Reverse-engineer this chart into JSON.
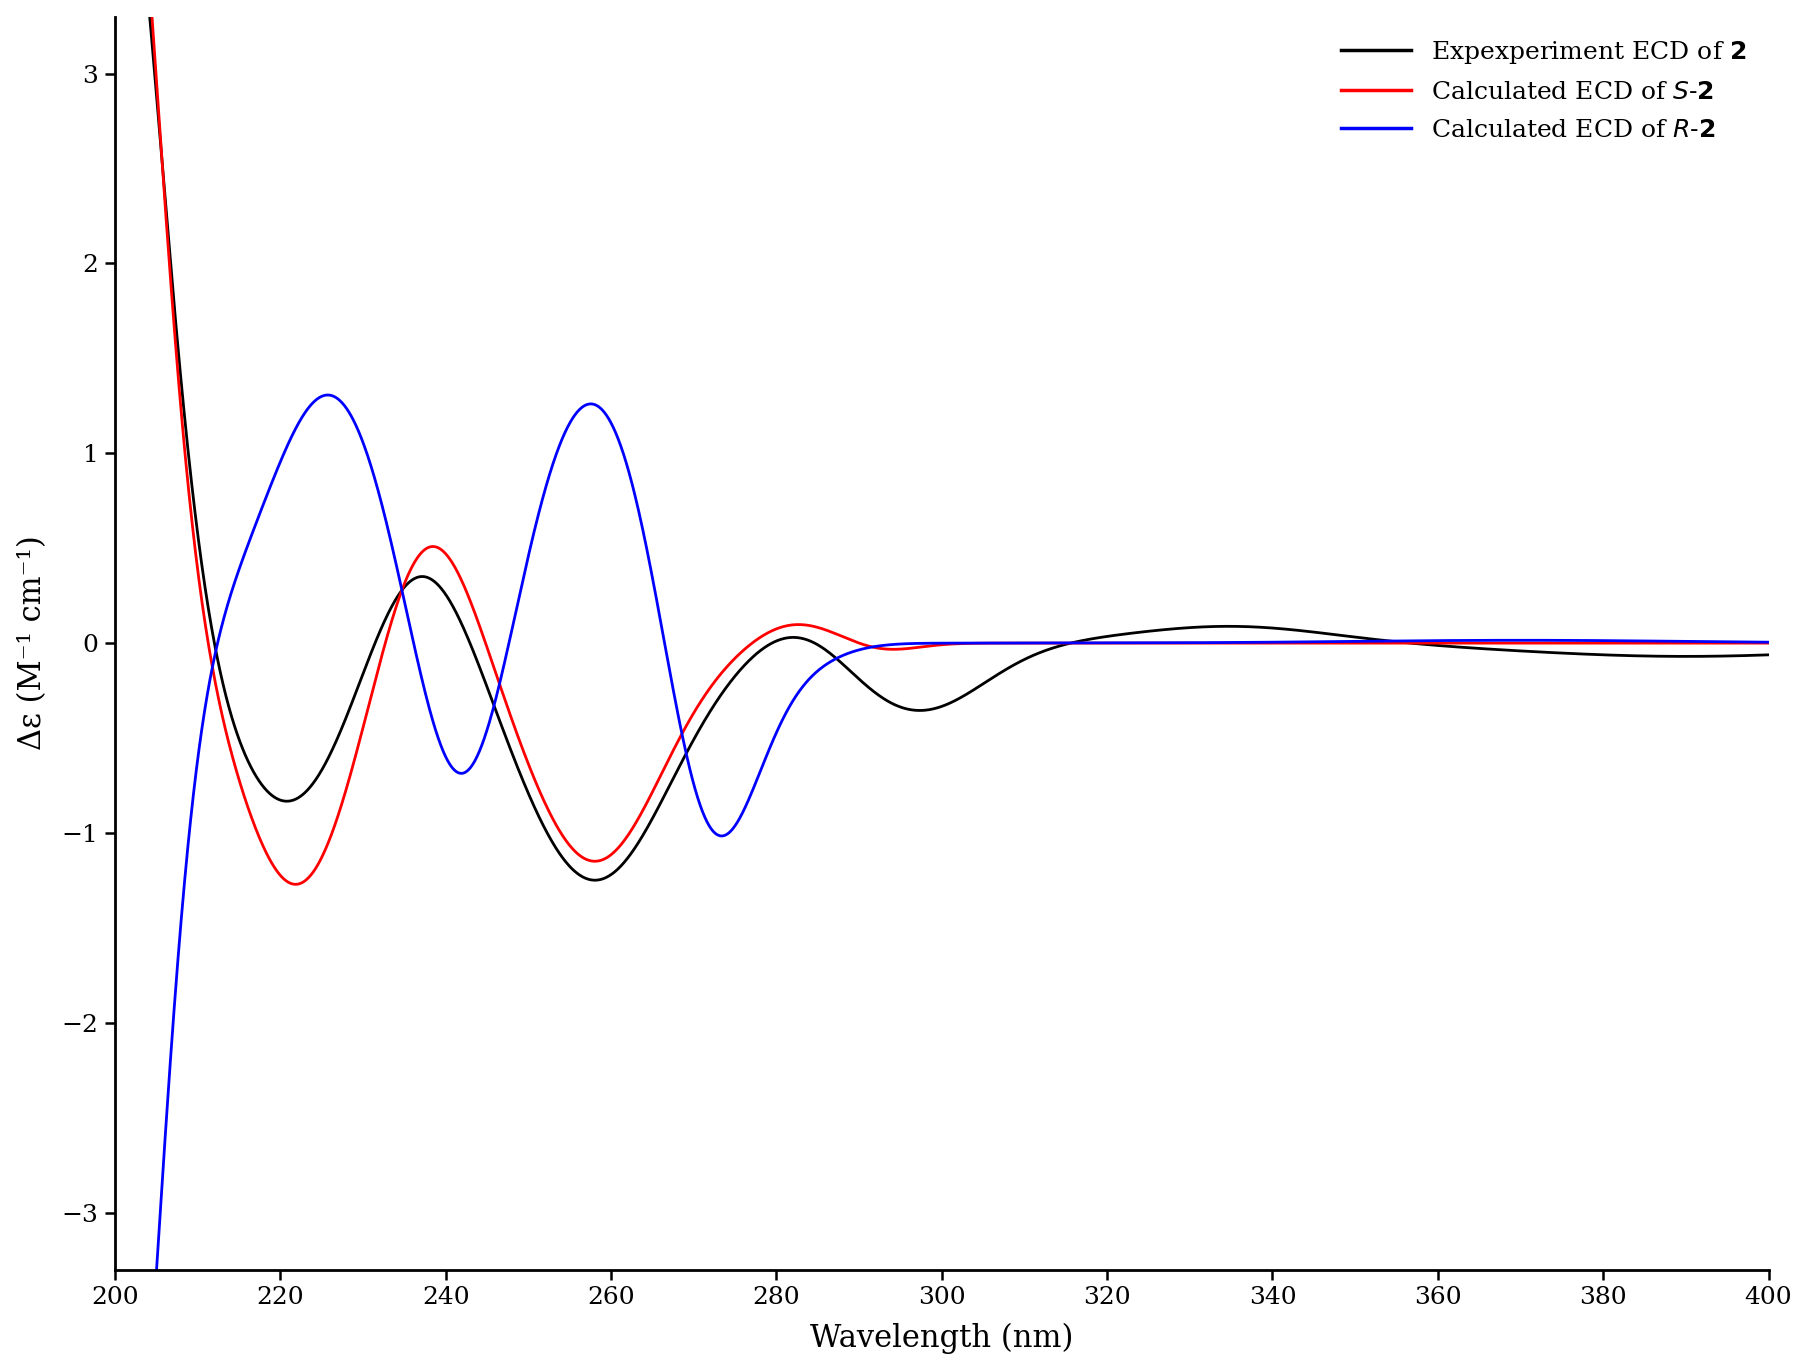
{
  "xlim": [
    200,
    400
  ],
  "ylim": [
    -3.3,
    3.3
  ],
  "xticks": [
    200,
    220,
    240,
    260,
    280,
    300,
    320,
    340,
    360,
    380,
    400
  ],
  "yticks": [
    -3,
    -2,
    -1,
    0,
    1,
    2,
    3
  ],
  "xlabel": "Wavelength (nm)",
  "ylabel": "Δε (M⁻¹ cm⁻¹)",
  "legend_colors": [
    "#000000",
    "#ff0000",
    "#0000ff"
  ],
  "line_colors": [
    "#000000",
    "#ff0000",
    "#0000ff"
  ],
  "linewidth": 2.0,
  "background_color": "#ffffff",
  "figsize": [
    18.09,
    13.71
  ],
  "dpi": 100
}
